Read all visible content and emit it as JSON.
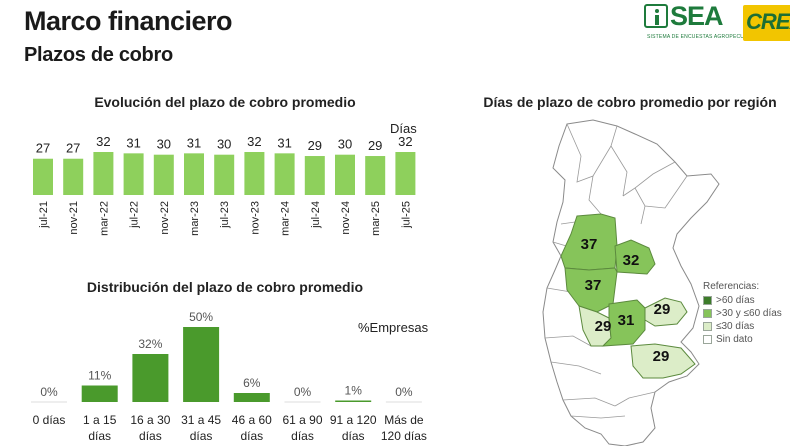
{
  "header": {
    "title": "Marco financiero",
    "subtitle": "Plazos de cobro"
  },
  "logos": {
    "sea_text": "SEA",
    "sea_tagline": "SISTEMA DE ENCUESTAS AGROPECUARIAS",
    "crea_text": "CREA"
  },
  "colors": {
    "bar_light": "#8ed05c",
    "bar_dark": "#4a9a2c",
    "dark_green": "#3d7c2a",
    "mid_green": "#86c45a",
    "light_green": "#dcedc8",
    "no_data": "#ffffff"
  },
  "chart_data": [
    {
      "type": "bar",
      "title": "Evolución del plazo de cobro promedio",
      "unit_label": "Días",
      "categories": [
        "jul-21",
        "nov-21",
        "mar-22",
        "jul-22",
        "nov-22",
        "mar-23",
        "jul-23",
        "nov-23",
        "mar-24",
        "jul-24",
        "nov-24",
        "mar-25",
        "jul-25"
      ],
      "values": [
        27,
        27,
        32,
        31,
        30,
        31,
        30,
        32,
        31,
        29,
        30,
        29,
        32
      ],
      "ylim": [
        0,
        32
      ],
      "grid": false
    },
    {
      "type": "bar",
      "title": "Distribución del plazo de cobro promedio",
      "unit_label": "%Empresas",
      "categories": [
        [
          "0 días"
        ],
        [
          "1 a 15",
          "días"
        ],
        [
          "16 a 30",
          "días"
        ],
        [
          "31 a 45",
          "días"
        ],
        [
          "46 a 60",
          "días"
        ],
        [
          "61 a 90",
          "días"
        ],
        [
          "91 a 120",
          "días"
        ],
        [
          "Más de",
          "120 días"
        ]
      ],
      "values": [
        0,
        11,
        32,
        50,
        6,
        0,
        1,
        0
      ],
      "value_labels": [
        "0%",
        "11%",
        "32%",
        "50%",
        "6%",
        "0%",
        "1%",
        "0%"
      ],
      "ylim": [
        0,
        50
      ],
      "grid": false
    }
  ],
  "map": {
    "title": "Días de plazo de cobro promedio por región",
    "regions": [
      {
        "label": "37",
        "category": ">30 y ≤60 días"
      },
      {
        "label": "32",
        "category": ">30 y ≤60 días"
      },
      {
        "label": "37",
        "category": ">30 y ≤60 días"
      },
      {
        "label": "29",
        "category": "≤30 días"
      },
      {
        "label": "31",
        "category": ">30 y ≤60 días"
      },
      {
        "label": "29",
        "category": "≤30 días"
      },
      {
        "label": "29",
        "category": "≤30 días"
      }
    ],
    "legend": {
      "title": "Referencias:",
      "items": [
        {
          "label": ">60 días",
          "color": "#3d7c2a"
        },
        {
          "label": ">30 y ≤60 días",
          "color": "#86c45a"
        },
        {
          "label": "≤30 días",
          "color": "#dcedc8"
        },
        {
          "label": "Sin dato",
          "color": "#ffffff"
        }
      ]
    }
  }
}
